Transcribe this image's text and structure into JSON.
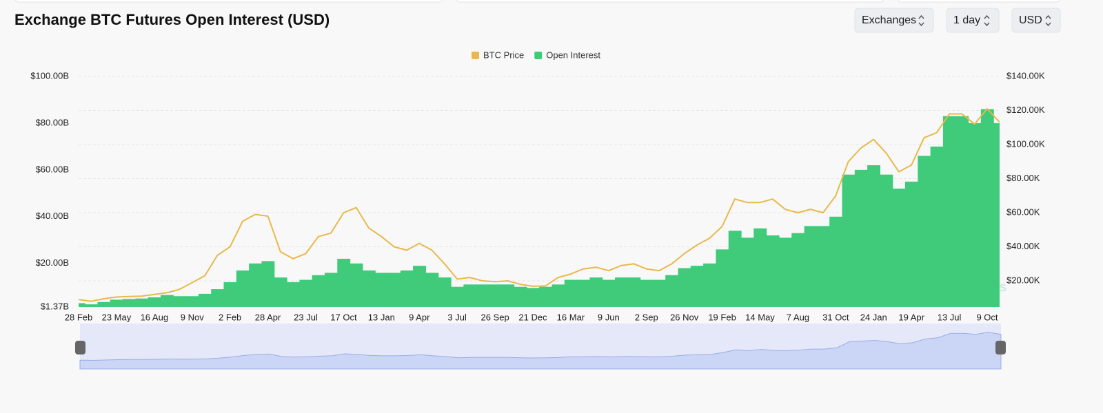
{
  "header": {
    "title": "Exchange BTC Futures Open Interest (USD)",
    "controls": [
      "Exchanges",
      "1 day",
      "USD"
    ]
  },
  "chart_data": {
    "type": "bar-line",
    "watermark": "coinglass",
    "categories": [
      "28 Feb",
      null,
      null,
      "23 May",
      null,
      null,
      "16 Aug",
      null,
      null,
      "9 Nov",
      null,
      null,
      "2 Feb",
      null,
      null,
      "28 Apr",
      null,
      null,
      "23 Jul",
      null,
      null,
      "17 Oct",
      null,
      null,
      "13 Jan",
      null,
      null,
      "9 Apr",
      null,
      null,
      "3 Jul",
      null,
      null,
      "26 Sep",
      null,
      null,
      "21 Dec",
      null,
      null,
      "16 Mar",
      null,
      null,
      "9 Jun",
      null,
      null,
      "2 Sep",
      null,
      null,
      "26 Nov",
      null,
      null,
      "19 Feb",
      null,
      null,
      "14 May",
      null,
      null,
      "7 Aug",
      null,
      null,
      "31 Oct",
      null,
      null,
      "24 Jan",
      null,
      null,
      "19 Apr",
      null,
      null,
      "13 Jul",
      null,
      null,
      "9 Oct",
      null
    ],
    "series": [
      {
        "name": "BTC Price",
        "type": "line",
        "axis": "y2",
        "color": "#e8b84a",
        "values": [
          9,
          8,
          9.5,
          10.5,
          10.8,
          11,
          12,
          13,
          15,
          19,
          23,
          35,
          40,
          55,
          59,
          58,
          37,
          33,
          36,
          46,
          48,
          60,
          63,
          51,
          46,
          40,
          38,
          42,
          38,
          30,
          21,
          22,
          20,
          19.5,
          20,
          18,
          16.8,
          17,
          22,
          24,
          27,
          28,
          26,
          29,
          30,
          27,
          26,
          30,
          36,
          41,
          45,
          52,
          68,
          66,
          66,
          68,
          62,
          60,
          62,
          60,
          70,
          90,
          98,
          103,
          95,
          84,
          88,
          104,
          107,
          118,
          118,
          112,
          121,
          113
        ]
      },
      {
        "name": "Open Interest",
        "type": "bar",
        "color": "#3fcb7a",
        "values": [
          3,
          2.5,
          3.5,
          4.5,
          4.8,
          5,
          5.5,
          6.5,
          6,
          6,
          7,
          9,
          12,
          17,
          20,
          21,
          14,
          12,
          13,
          15,
          16,
          22,
          20,
          17,
          16,
          16,
          17,
          19,
          16,
          14,
          10,
          11,
          11,
          11,
          11,
          10,
          9.5,
          10,
          11,
          13,
          13,
          14,
          13,
          14,
          14,
          13,
          13,
          15,
          18,
          19,
          20,
          26,
          34,
          31,
          35,
          32,
          31,
          33,
          36,
          36,
          40,
          58,
          60,
          62,
          58,
          52,
          55,
          66,
          70,
          83,
          83,
          80,
          86,
          80
        ]
      }
    ],
    "ylim": [
      1.37,
      100
    ],
    "yticks": [
      {
        "value": 1.37,
        "label": "$1.37B"
      },
      {
        "value": 20,
        "label": "$20.00B"
      },
      {
        "value": 40,
        "label": "$40.00B"
      },
      {
        "value": 60,
        "label": "$60.00B"
      },
      {
        "value": 80,
        "label": "$80.00B"
      },
      {
        "value": 100,
        "label": "$100.00B"
      }
    ],
    "y2lim": [
      4.65,
      140
    ],
    "y2ticks": [
      {
        "value": 20,
        "label": "$20.00K"
      },
      {
        "value": 40,
        "label": "$40.00K"
      },
      {
        "value": 60,
        "label": "$60.00K"
      },
      {
        "value": 80,
        "label": "$80.00K"
      },
      {
        "value": 100,
        "label": "$100.00K"
      },
      {
        "value": 120,
        "label": "$120.00K"
      },
      {
        "value": 140,
        "label": "$140.00K"
      }
    ],
    "grid": true,
    "legend": "top"
  }
}
